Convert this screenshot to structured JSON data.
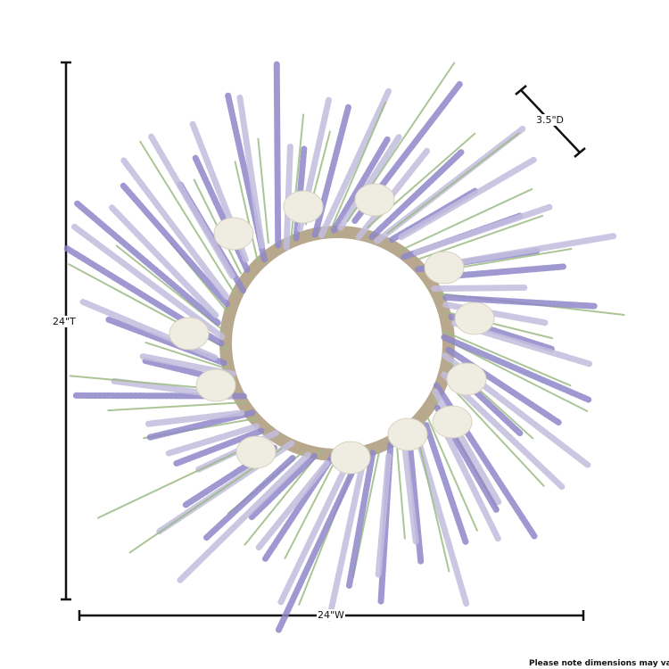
{
  "dimensions": {
    "height": "24\"T",
    "width": "24\"W",
    "depth": "3.5\"D"
  },
  "note": "Please note dimensions may vary",
  "colors": {
    "lavender": "#8f87c9",
    "light_lavender": "#c3bedf",
    "leaf": "#9dbb86",
    "egg": "#efece2",
    "line": "#111111"
  }
}
